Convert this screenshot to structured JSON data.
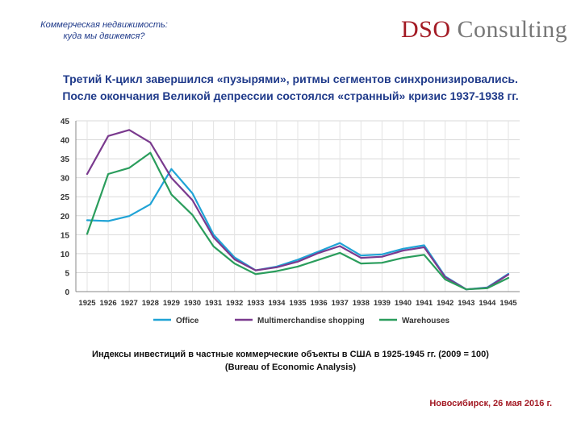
{
  "header": {
    "left_line1": "Коммерческая недвижимость:",
    "left_line2": "куда мы движемся?",
    "logo_part1": "DSO",
    "logo_part2": " Consulting"
  },
  "headline": {
    "line1": "Третий К-цикл завершился «пузырями», ритмы сегментов синхронизировались.",
    "line2": "После окончания Великой депрессии состоялся «странный» кризис 1937-1938 гг."
  },
  "caption": {
    "line1": "Индексы инвестиций в частные коммерческие объекты в США в 1925-1945 гг. (2009 = 100)",
    "line2": "(Bureau of Economic Analysis)"
  },
  "footer": {
    "text": "Новосибирск, 26 мая 2016 г."
  },
  "chart_data": {
    "type": "line",
    "title": "",
    "xlabel": "",
    "ylabel": "",
    "x": [
      "1925",
      "1926",
      "1927",
      "1928",
      "1929",
      "1930",
      "1931",
      "1932",
      "1933",
      "1934",
      "1935",
      "1936",
      "1937",
      "1938",
      "1939",
      "1940",
      "1941",
      "1942",
      "1943",
      "1944",
      "1945"
    ],
    "ylim": [
      0,
      45
    ],
    "yticks": [
      0,
      5,
      10,
      15,
      20,
      25,
      30,
      35,
      40,
      45
    ],
    "grid": true,
    "legend": "bottom",
    "series": [
      {
        "name": "Office",
        "color": "#1fa3d6",
        "values": [
          18.8,
          18.6,
          19.9,
          23.0,
          32.3,
          25.9,
          15.0,
          9.0,
          5.6,
          6.6,
          8.4,
          10.6,
          12.8,
          9.5,
          9.8,
          11.3,
          12.2,
          4.0,
          0.6,
          1.1,
          4.7
        ]
      },
      {
        "name": "Multimerchandise shopping",
        "color": "#7a3a8e",
        "values": [
          31.0,
          41.0,
          42.6,
          39.3,
          30.0,
          24.1,
          14.3,
          8.5,
          5.6,
          6.4,
          7.9,
          10.2,
          12.0,
          8.9,
          9.2,
          10.8,
          11.7,
          3.8,
          0.6,
          1.0,
          4.5
        ]
      },
      {
        "name": "Warehouses",
        "color": "#2a9d5c",
        "values": [
          15.2,
          31.0,
          32.6,
          36.6,
          25.6,
          20.2,
          11.9,
          7.4,
          4.6,
          5.4,
          6.6,
          8.4,
          10.2,
          7.4,
          7.6,
          8.9,
          9.7,
          3.2,
          0.6,
          0.9,
          3.6
        ]
      }
    ]
  }
}
